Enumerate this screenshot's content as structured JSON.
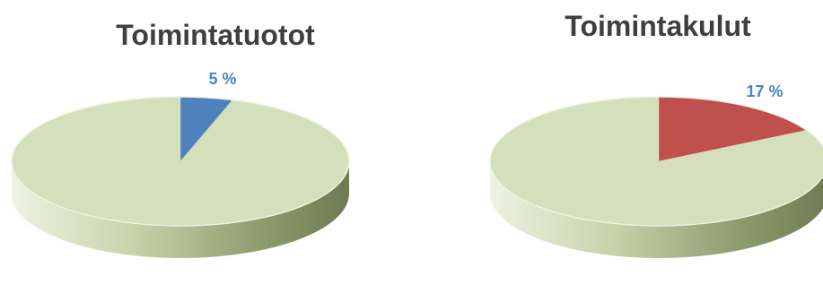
{
  "chart_data": [
    {
      "type": "pie",
      "title": "Toimintatuotot",
      "values": [
        5,
        95
      ],
      "labels": [
        "",
        ""
      ],
      "data_labels": [
        "5 %"
      ],
      "colors": [
        "#4f81bd",
        "#d4dfbc"
      ],
      "label_color": "#4f81bd"
    },
    {
      "type": "pie",
      "title": "Toimintakulut",
      "values": [
        17,
        83
      ],
      "labels": [
        "",
        ""
      ],
      "data_labels": [
        "17 %"
      ],
      "colors": [
        "#c0504d",
        "#d4dfbc"
      ],
      "label_color": "#4f81bd"
    }
  ]
}
